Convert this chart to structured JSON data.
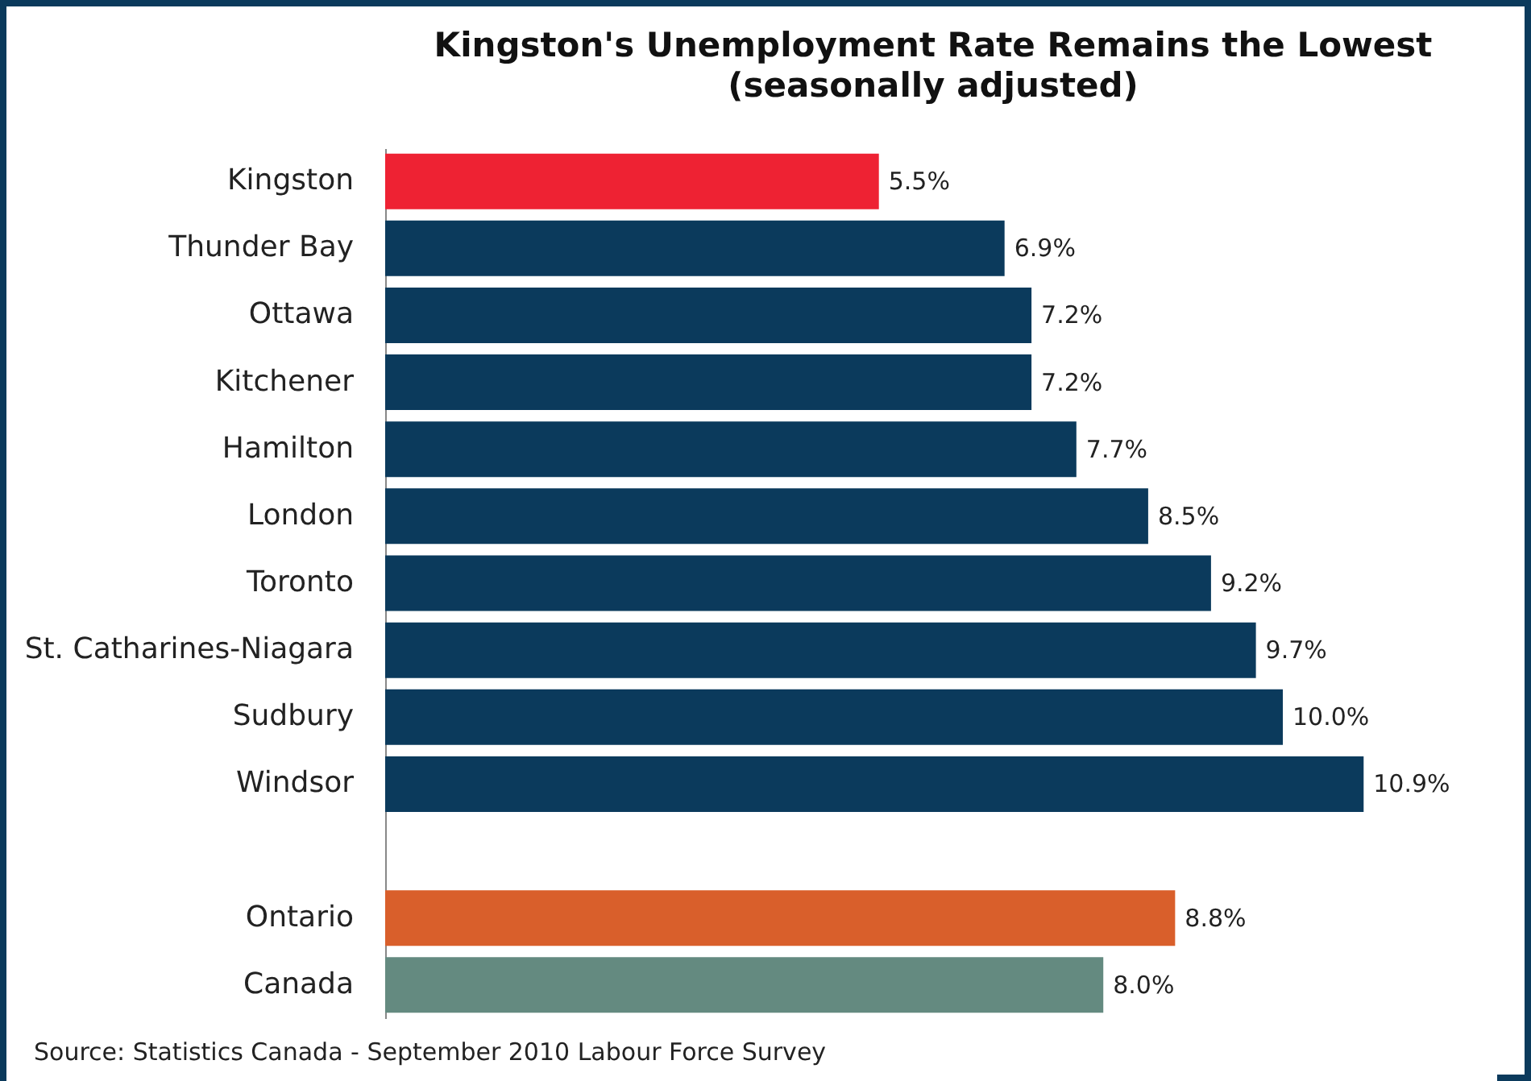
{
  "chart_data": {
    "type": "bar",
    "orientation": "horizontal",
    "title": "Kingston's Unemployment Rate Remains the Lowest",
    "subtitle": "(seasonally adjusted)",
    "categories": [
      "Kingston",
      "Thunder Bay",
      "Ottawa",
      "Kitchener",
      "Hamilton",
      "London",
      "Toronto",
      "St. Catharines-Niagara",
      "Sudbury",
      "Windsor",
      null,
      "Ontario",
      "Canada"
    ],
    "values": [
      5.5,
      6.9,
      7.2,
      7.2,
      7.7,
      8.5,
      9.2,
      9.7,
      10.0,
      10.9,
      null,
      8.8,
      8.0
    ],
    "colors": [
      "#ee2233",
      "#0b3a5c",
      "#0b3a5c",
      "#0b3a5c",
      "#0b3a5c",
      "#0b3a5c",
      "#0b3a5c",
      "#0b3a5c",
      "#0b3a5c",
      "#0b3a5c",
      "#0b3a5c",
      "#d95f2b",
      "#648a80"
    ],
    "value_labels": [
      "5.5%",
      "6.9%",
      "7.2%",
      "7.2%",
      "7.7%",
      "8.5%",
      "9.2%",
      "9.7%",
      "10.0%",
      "10.9%",
      null,
      "8.8%",
      "8.0%"
    ],
    "annotations": [
      "Source: Statistics Canada - September 2010 Labour Force Survey"
    ]
  }
}
